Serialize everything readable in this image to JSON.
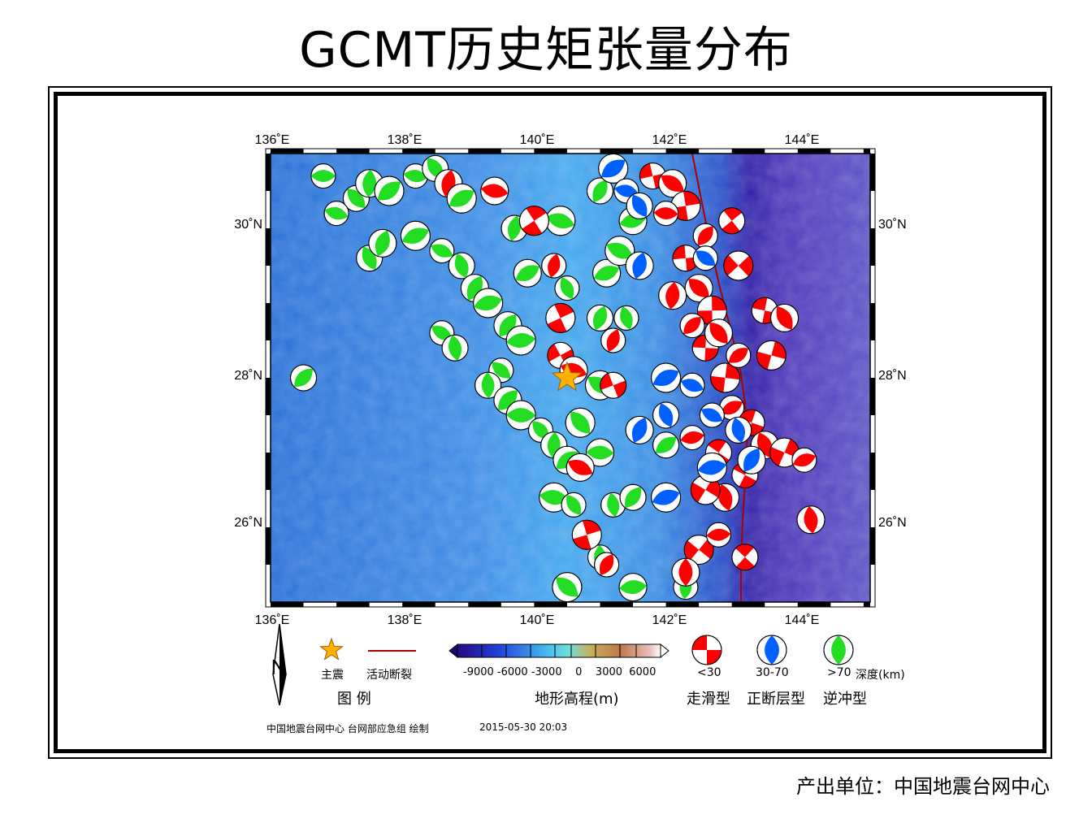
{
  "title": "GCMT历史矩张量分布",
  "footer_unit": "产出单位：中国地震台网中心",
  "axis": {
    "lon_ticks": [
      "136˚E",
      "138˚E",
      "140˚E",
      "142˚E",
      "144˚E"
    ],
    "lat_ticks": [
      "30˚N",
      "28˚N",
      "26˚N"
    ]
  },
  "legend": {
    "north": "N",
    "mainshock": "主震",
    "fault": "活动断裂",
    "legend_title": "图    例",
    "topo_ticks": "-9000 -6000 -3000    0    3000  6000",
    "topo_title": "地形高程(m)",
    "depth_lt30": "<30",
    "depth_30_70": "30-70",
    "depth_gt70": ">70",
    "depth_unit": "深度(km)",
    "type_strike": "走滑型",
    "type_normal": "正断层型",
    "type_thrust": "逆冲型"
  },
  "credit": {
    "org": "中国地震台网中心 台网部应急组 绘制",
    "time": "2015-05-30 20:03"
  },
  "colors": {
    "shallow": "#ff0000",
    "intermediate": "#0060ff",
    "deep": "#22dd22",
    "mainshock": "#ffb000",
    "fault": "#aa0000"
  },
  "map": {
    "lon_range": [
      136,
      145.1
    ],
    "lat_range": [
      24.9,
      30.9
    ],
    "mainshock": {
      "lon": 140.5,
      "lat": 27.9
    },
    "events": [
      {
        "lon": 136.8,
        "lat": 30.6,
        "d": "deep"
      },
      {
        "lon": 137.3,
        "lat": 30.3,
        "d": "deep"
      },
      {
        "lon": 137.5,
        "lat": 30.5,
        "d": "deep"
      },
      {
        "lon": 137.8,
        "lat": 30.4,
        "d": "deep"
      },
      {
        "lon": 138.2,
        "lat": 30.6,
        "d": "deep"
      },
      {
        "lon": 138.5,
        "lat": 30.7,
        "d": "deep"
      },
      {
        "lon": 138.7,
        "lat": 30.5,
        "d": "shallow"
      },
      {
        "lon": 138.9,
        "lat": 30.3,
        "d": "deep"
      },
      {
        "lon": 137.0,
        "lat": 30.1,
        "d": "deep"
      },
      {
        "lon": 137.5,
        "lat": 29.5,
        "d": "deep"
      },
      {
        "lon": 137.7,
        "lat": 29.7,
        "d": "deep"
      },
      {
        "lon": 138.2,
        "lat": 29.8,
        "d": "deep"
      },
      {
        "lon": 138.6,
        "lat": 29.6,
        "d": "deep"
      },
      {
        "lon": 138.9,
        "lat": 29.4,
        "d": "deep"
      },
      {
        "lon": 139.1,
        "lat": 29.1,
        "d": "deep"
      },
      {
        "lon": 139.3,
        "lat": 28.9,
        "d": "deep"
      },
      {
        "lon": 138.6,
        "lat": 28.5,
        "d": "deep"
      },
      {
        "lon": 138.8,
        "lat": 28.3,
        "d": "deep"
      },
      {
        "lon": 139.6,
        "lat": 28.6,
        "d": "deep"
      },
      {
        "lon": 139.8,
        "lat": 28.4,
        "d": "deep"
      },
      {
        "lon": 139.5,
        "lat": 28.0,
        "d": "deep"
      },
      {
        "lon": 139.3,
        "lat": 27.8,
        "d": "deep"
      },
      {
        "lon": 139.6,
        "lat": 27.6,
        "d": "deep"
      },
      {
        "lon": 139.8,
        "lat": 27.4,
        "d": "deep"
      },
      {
        "lon": 140.1,
        "lat": 27.2,
        "d": "deep"
      },
      {
        "lon": 140.3,
        "lat": 27.0,
        "d": "deep"
      },
      {
        "lon": 140.5,
        "lat": 26.8,
        "d": "deep"
      },
      {
        "lon": 140.3,
        "lat": 26.3,
        "d": "deep"
      },
      {
        "lon": 140.6,
        "lat": 26.2,
        "d": "deep"
      },
      {
        "lon": 139.7,
        "lat": 29.9,
        "d": "deep"
      },
      {
        "lon": 139.9,
        "lat": 29.3,
        "d": "deep"
      },
      {
        "lon": 140.4,
        "lat": 30.0,
        "d": "deep"
      },
      {
        "lon": 140.5,
        "lat": 29.1,
        "d": "deep"
      },
      {
        "lon": 141.0,
        "lat": 28.7,
        "d": "deep"
      },
      {
        "lon": 141.1,
        "lat": 29.3,
        "d": "deep"
      },
      {
        "lon": 141.3,
        "lat": 29.6,
        "d": "deep"
      },
      {
        "lon": 141.4,
        "lat": 28.7,
        "d": "deep"
      },
      {
        "lon": 141.0,
        "lat": 30.4,
        "d": "deep"
      },
      {
        "lon": 141.5,
        "lat": 30.0,
        "d": "deep"
      },
      {
        "lon": 141.0,
        "lat": 27.8,
        "d": "deep"
      },
      {
        "lon": 141.2,
        "lat": 26.2,
        "d": "deep"
      },
      {
        "lon": 141.5,
        "lat": 26.3,
        "d": "deep"
      },
      {
        "lon": 141.5,
        "lat": 25.1,
        "d": "deep"
      },
      {
        "lon": 140.5,
        "lat": 25.1,
        "d": "deep"
      },
      {
        "lon": 141.0,
        "lat": 25.5,
        "d": "deep"
      },
      {
        "lon": 136.5,
        "lat": 27.9,
        "d": "deep"
      },
      {
        "lon": 141.0,
        "lat": 26.9,
        "d": "deep"
      },
      {
        "lon": 140.7,
        "lat": 27.3,
        "d": "deep"
      },
      {
        "lon": 142.3,
        "lat": 25.1,
        "d": "deep"
      },
      {
        "lon": 142.0,
        "lat": 27.0,
        "d": "deep"
      },
      {
        "lon": 139.4,
        "lat": 30.4,
        "d": "shallow"
      },
      {
        "lon": 140.0,
        "lat": 30.0,
        "d": "shallow"
      },
      {
        "lon": 140.3,
        "lat": 29.4,
        "d": "shallow"
      },
      {
        "lon": 140.4,
        "lat": 28.2,
        "d": "shallow"
      },
      {
        "lon": 140.6,
        "lat": 28.0,
        "d": "shallow"
      },
      {
        "lon": 140.4,
        "lat": 28.7,
        "d": "shallow"
      },
      {
        "lon": 141.2,
        "lat": 28.4,
        "d": "shallow"
      },
      {
        "lon": 141.2,
        "lat": 27.8,
        "d": "shallow"
      },
      {
        "lon": 140.7,
        "lat": 26.7,
        "d": "shallow"
      },
      {
        "lon": 140.8,
        "lat": 25.8,
        "d": "shallow"
      },
      {
        "lon": 141.1,
        "lat": 25.4,
        "d": "shallow"
      },
      {
        "lon": 141.8,
        "lat": 30.6,
        "d": "shallow"
      },
      {
        "lon": 142.1,
        "lat": 30.5,
        "d": "shallow"
      },
      {
        "lon": 142.3,
        "lat": 30.2,
        "d": "shallow"
      },
      {
        "lon": 142.6,
        "lat": 29.8,
        "d": "shallow"
      },
      {
        "lon": 142.3,
        "lat": 29.5,
        "d": "shallow"
      },
      {
        "lon": 142.5,
        "lat": 29.1,
        "d": "shallow"
      },
      {
        "lon": 142.7,
        "lat": 28.8,
        "d": "shallow"
      },
      {
        "lon": 142.4,
        "lat": 28.6,
        "d": "shallow"
      },
      {
        "lon": 142.6,
        "lat": 28.3,
        "d": "shallow"
      },
      {
        "lon": 142.8,
        "lat": 28.5,
        "d": "shallow"
      },
      {
        "lon": 142.9,
        "lat": 27.9,
        "d": "shallow"
      },
      {
        "lon": 143.1,
        "lat": 28.2,
        "d": "shallow"
      },
      {
        "lon": 143.5,
        "lat": 28.8,
        "d": "shallow"
      },
      {
        "lon": 143.8,
        "lat": 28.7,
        "d": "shallow"
      },
      {
        "lon": 143.6,
        "lat": 28.2,
        "d": "shallow"
      },
      {
        "lon": 143.0,
        "lat": 27.5,
        "d": "shallow"
      },
      {
        "lon": 143.3,
        "lat": 27.3,
        "d": "shallow"
      },
      {
        "lon": 143.5,
        "lat": 27.0,
        "d": "shallow"
      },
      {
        "lon": 143.8,
        "lat": 26.9,
        "d": "shallow"
      },
      {
        "lon": 144.1,
        "lat": 26.8,
        "d": "shallow"
      },
      {
        "lon": 143.2,
        "lat": 26.6,
        "d": "shallow"
      },
      {
        "lon": 142.9,
        "lat": 26.3,
        "d": "shallow"
      },
      {
        "lon": 142.6,
        "lat": 26.4,
        "d": "shallow"
      },
      {
        "lon": 142.4,
        "lat": 27.1,
        "d": "shallow"
      },
      {
        "lon": 142.8,
        "lat": 26.9,
        "d": "shallow"
      },
      {
        "lon": 144.2,
        "lat": 26.0,
        "d": "shallow"
      },
      {
        "lon": 142.5,
        "lat": 25.6,
        "d": "shallow"
      },
      {
        "lon": 142.8,
        "lat": 25.8,
        "d": "shallow"
      },
      {
        "lon": 143.2,
        "lat": 25.5,
        "d": "shallow"
      },
      {
        "lon": 142.3,
        "lat": 25.3,
        "d": "shallow"
      },
      {
        "lon": 143.1,
        "lat": 29.4,
        "d": "shallow"
      },
      {
        "lon": 142.0,
        "lat": 30.1,
        "d": "shallow"
      },
      {
        "lon": 143.0,
        "lat": 30.0,
        "d": "shallow"
      },
      {
        "lon": 142.1,
        "lat": 29.0,
        "d": "shallow"
      },
      {
        "lon": 141.2,
        "lat": 30.7,
        "d": "intermediate"
      },
      {
        "lon": 141.4,
        "lat": 30.4,
        "d": "intermediate"
      },
      {
        "lon": 141.6,
        "lat": 30.2,
        "d": "intermediate"
      },
      {
        "lon": 141.6,
        "lat": 29.4,
        "d": "intermediate"
      },
      {
        "lon": 142.0,
        "lat": 27.9,
        "d": "intermediate"
      },
      {
        "lon": 142.4,
        "lat": 27.8,
        "d": "intermediate"
      },
      {
        "lon": 142.0,
        "lat": 27.4,
        "d": "intermediate"
      },
      {
        "lon": 141.6,
        "lat": 27.2,
        "d": "intermediate"
      },
      {
        "lon": 142.0,
        "lat": 26.3,
        "d": "intermediate"
      },
      {
        "lon": 142.7,
        "lat": 27.4,
        "d": "intermediate"
      },
      {
        "lon": 143.1,
        "lat": 27.2,
        "d": "intermediate"
      },
      {
        "lon": 143.3,
        "lat": 26.8,
        "d": "intermediate"
      },
      {
        "lon": 142.7,
        "lat": 26.7,
        "d": "intermediate"
      },
      {
        "lon": 142.6,
        "lat": 29.5,
        "d": "intermediate"
      }
    ]
  }
}
